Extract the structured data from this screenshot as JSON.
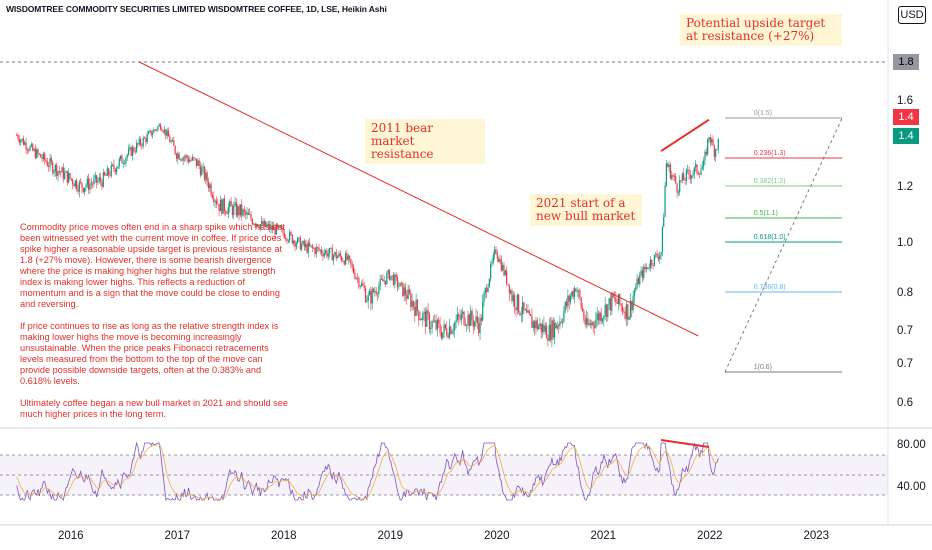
{
  "header": {
    "title": "WISDOMTREE COMMODITY SECURITIES LIMITED WISDOMTREE COFFEE, 1D, LSE, Heikin Ashi"
  },
  "currency": "USD",
  "annotations": {
    "upside": "Potential upside target at resistance (+27%)",
    "bear": "2011 bear market resistance",
    "bull": "2021 start of a new bull market"
  },
  "body_text": {
    "p1": "Commodity price moves often end in a sharp spike which has not been witnessed yet with the current move in coffee. If price does spike higher a reasonable upside target is previous resistance at 1.8 (+27% move). However, there is some bearish divergence where the price is making higher highs but the relative strength index is making lower highs. This reflects a reduction of momentum and is a sign that the move could be close to ending and reversing.",
    "p2": "If price continues to rise as long as the relative strength index is making lower highs the move is becoming increasingly unsustainable. When the price peaks Fibonacci retracements levels measured from the bottom to the top of the move can provide possible downside targets, often at the 0.383% and 0.618% levels.",
    "p3": "Ultimately coffee began a new bull market in 2021 and should see much higher prices in the long term."
  },
  "price_tags": [
    {
      "text": "1.8",
      "bg": "#9598a1",
      "fg": "#000000"
    },
    {
      "text": "1.4",
      "bg": "#f23645",
      "fg": "#ffffff"
    },
    {
      "text": "1.4",
      "bg": "#089981",
      "fg": "#ffffff"
    }
  ],
  "chart_data": {
    "type": "candlestick",
    "title": "WISDOMTREE COMMODITY SECURITIES LIMITED WISDOMTREE COFFEE, 1D, LSE, Heikin Ashi",
    "y_axis_labels": [
      "1.8",
      "1.6",
      "1.4",
      "1.2",
      "1.0",
      "0.8",
      "0.7",
      "0.7",
      "0.6"
    ],
    "x_axis_labels": [
      "2016",
      "2017",
      "2018",
      "2019",
      "2020",
      "2021",
      "2022",
      "2023"
    ],
    "price_path": [
      [
        2015.5,
        1.4
      ],
      [
        2015.65,
        1.33
      ],
      [
        2015.8,
        1.28
      ],
      [
        2015.95,
        1.24
      ],
      [
        2016.1,
        1.2
      ],
      [
        2016.3,
        1.22
      ],
      [
        2016.5,
        1.3
      ],
      [
        2016.7,
        1.38
      ],
      [
        2016.85,
        1.46
      ],
      [
        2017.0,
        1.32
      ],
      [
        2017.2,
        1.28
      ],
      [
        2017.4,
        1.14
      ],
      [
        2017.6,
        1.12
      ],
      [
        2017.8,
        1.07
      ],
      [
        2018.0,
        1.04
      ],
      [
        2018.2,
        0.98
      ],
      [
        2018.4,
        0.96
      ],
      [
        2018.6,
        0.93
      ],
      [
        2018.8,
        0.78
      ],
      [
        2019.0,
        0.87
      ],
      [
        2019.1,
        0.82
      ],
      [
        2019.3,
        0.74
      ],
      [
        2019.5,
        0.7
      ],
      [
        2019.7,
        0.74
      ],
      [
        2019.85,
        0.72
      ],
      [
        2020.0,
        0.97
      ],
      [
        2020.15,
        0.79
      ],
      [
        2020.3,
        0.73
      ],
      [
        2020.5,
        0.7
      ],
      [
        2020.6,
        0.73
      ],
      [
        2020.75,
        0.82
      ],
      [
        2020.85,
        0.71
      ],
      [
        2021.0,
        0.75
      ],
      [
        2021.1,
        0.78
      ],
      [
        2021.25,
        0.75
      ],
      [
        2021.35,
        0.86
      ],
      [
        2021.45,
        0.92
      ],
      [
        2021.55,
        0.96
      ],
      [
        2021.6,
        1.28
      ],
      [
        2021.7,
        1.2
      ],
      [
        2021.8,
        1.24
      ],
      [
        2021.95,
        1.27
      ],
      [
        2022.0,
        1.4
      ],
      [
        2022.05,
        1.33
      ],
      [
        2022.1,
        1.38
      ]
    ],
    "fibonacci": [
      {
        "label": "0(1.5)",
        "value": 1.5,
        "color": "#9598a1"
      },
      {
        "label": "0.236(1.3)",
        "value": 1.3,
        "color": "#f23645"
      },
      {
        "label": "0.382(1.2)",
        "value": 1.2,
        "color": "#81c784"
      },
      {
        "label": "0.5(1.1)",
        "value": 1.1,
        "color": "#4caf50"
      },
      {
        "label": "0.618(1.0)",
        "value": 1.0,
        "color": "#089981"
      },
      {
        "label": "0.786(0.8)",
        "value": 0.8,
        "color": "#64b5f6"
      },
      {
        "label": "1(0.6)",
        "value": 0.6,
        "color": "#787b86"
      }
    ],
    "resistance_level": 1.8,
    "rsi": {
      "levels": [
        70,
        50,
        30
      ],
      "y_axis_labels": [
        "80.00",
        "40.00"
      ]
    },
    "colors": {
      "up": "#089981",
      "down": "#f23645",
      "trend": "#e5302a",
      "rsi": "#7e57c2",
      "rsi_ma": "#f5b041"
    }
  }
}
